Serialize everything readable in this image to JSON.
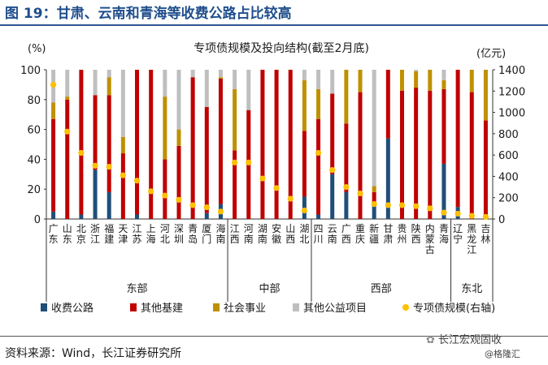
{
  "figure": {
    "title": "图 19：甘肃、云南和青海等收费公路占比较高",
    "source": "资料来源：Wind，长江证券研究所",
    "watermark": "长江宏观固收",
    "watermark_sub": "@格隆汇"
  },
  "chart_data": {
    "type": "bar",
    "stacked": true,
    "title": "专项债规模及投向结构(截至2月底)",
    "ylabel_left": "(%)",
    "ylabel_right": "(亿元)",
    "ylim_left": [
      0,
      100
    ],
    "yticks_left": [
      0,
      20,
      40,
      60,
      80,
      100
    ],
    "ylim_right": [
      0,
      1400
    ],
    "yticks_right": [
      0,
      200,
      400,
      600,
      800,
      1000,
      1200,
      1400
    ],
    "legend_position": "bottom",
    "categories": [
      "广东",
      "山东",
      "北京",
      "浙江",
      "福建",
      "天津",
      "江苏",
      "上海",
      "河北",
      "深圳",
      "青岛",
      "厦门",
      "海南",
      "江西",
      "河南",
      "湖南",
      "安徽",
      "山西",
      "湖北",
      "四川",
      "云南",
      "广西",
      "重庆",
      "新疆",
      "甘肃",
      "贵州",
      "陕西",
      "内蒙古",
      "青海",
      "辽宁",
      "黑龙江",
      "吉林"
    ],
    "category_display": [
      "广东",
      "山东",
      "北京",
      "浙江",
      "福建",
      "天津",
      "江苏",
      "上海",
      "河北",
      "深圳",
      "青岛",
      "厦门",
      "海南",
      "江西",
      "河南",
      "湖南",
      "安徽",
      "山西",
      "湖北",
      "四川",
      "云南",
      "广西",
      "重庆",
      "新疆",
      "甘肃",
      "贵州",
      "陕西",
      "内蒙古",
      "青海",
      "辽宁",
      "黑龙江",
      "吉林"
    ],
    "groups": [
      {
        "name": "东部",
        "start": 0,
        "end": 12
      },
      {
        "name": "中部",
        "start": 13,
        "end": 18
      },
      {
        "name": "西部",
        "start": 19,
        "end": 28
      },
      {
        "name": "东北",
        "start": 29,
        "end": 31
      }
    ],
    "series": [
      {
        "name": "收费公路",
        "color": "#1f4e79",
        "axis": "left",
        "values": [
          5,
          0,
          3,
          33,
          18,
          0,
          3,
          0,
          0,
          0,
          0,
          4,
          10,
          0,
          0,
          0,
          0,
          0,
          15,
          3,
          30,
          18,
          0,
          10,
          54,
          0,
          0,
          0,
          37,
          8,
          0,
          0
        ]
      },
      {
        "name": "其他基建",
        "color": "#c00000",
        "axis": "left",
        "values": [
          62,
          80,
          97,
          50,
          65,
          44,
          97,
          100,
          40,
          49,
          95,
          71,
          84,
          46,
          73,
          100,
          100,
          100,
          44,
          64,
          54,
          46,
          85,
          8,
          46,
          86,
          88,
          86,
          50,
          92,
          85,
          66
        ]
      },
      {
        "name": "社会事业",
        "color": "#bf9000",
        "axis": "left",
        "values": [
          11,
          2,
          0,
          0,
          12,
          11,
          0,
          0,
          42,
          11,
          0,
          0,
          1,
          41,
          0,
          0,
          0,
          0,
          34,
          20,
          0,
          36,
          15,
          4,
          0,
          14,
          11,
          14,
          6,
          0,
          15,
          34
        ]
      },
      {
        "name": "其他公益项目",
        "color": "#bfbfbf",
        "axis": "left",
        "values": [
          22,
          18,
          0,
          17,
          5,
          45,
          0,
          0,
          18,
          40,
          5,
          25,
          5,
          13,
          27,
          0,
          0,
          0,
          7,
          13,
          16,
          0,
          0,
          78,
          0,
          0,
          1,
          0,
          7,
          0,
          0,
          0
        ]
      },
      {
        "name": "专项债规模(右轴)",
        "color": "#ffc000",
        "axis": "right",
        "marker": "dot",
        "values": [
          1260,
          820,
          620,
          500,
          490,
          410,
          360,
          260,
          220,
          180,
          130,
          110,
          70,
          530,
          530,
          380,
          290,
          190,
          80,
          620,
          460,
          300,
          240,
          140,
          130,
          130,
          120,
          100,
          60,
          50,
          30,
          20
        ]
      }
    ]
  }
}
